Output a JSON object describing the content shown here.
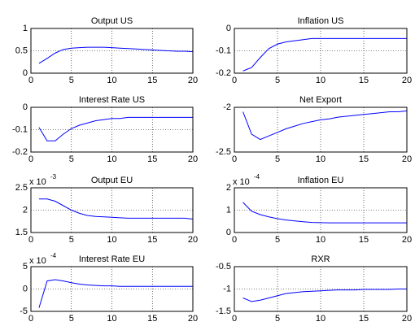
{
  "chart_data": [
    {
      "type": "line",
      "title": "Output US",
      "x": [
        1,
        2,
        3,
        4,
        5,
        6,
        7,
        8,
        9,
        10,
        11,
        12,
        13,
        14,
        15,
        16,
        17,
        18,
        19,
        20
      ],
      "values": [
        0.22,
        0.33,
        0.45,
        0.53,
        0.56,
        0.57,
        0.58,
        0.58,
        0.58,
        0.57,
        0.56,
        0.55,
        0.54,
        0.53,
        0.52,
        0.51,
        0.5,
        0.49,
        0.49,
        0.48
      ],
      "color": "#0000ff",
      "xlim": [
        0,
        20
      ],
      "xticks": [
        0,
        5,
        10,
        15,
        20
      ],
      "ylim": [
        0,
        1
      ],
      "yticks": [
        0,
        0.5,
        1
      ],
      "grid": true
    },
    {
      "type": "line",
      "title": "Inflation US",
      "x": [
        1,
        2,
        3,
        4,
        5,
        6,
        7,
        8,
        9,
        10,
        11,
        12,
        13,
        14,
        15,
        16,
        17,
        18,
        19,
        20
      ],
      "values": [
        -0.19,
        -0.175,
        -0.13,
        -0.09,
        -0.07,
        -0.06,
        -0.055,
        -0.05,
        -0.045,
        -0.045,
        -0.045,
        -0.045,
        -0.045,
        -0.045,
        -0.045,
        -0.045,
        -0.045,
        -0.045,
        -0.045,
        -0.045
      ],
      "color": "#0000ff",
      "xlim": [
        0,
        20
      ],
      "xticks": [
        0,
        5,
        10,
        15,
        20
      ],
      "ylim": [
        -0.2,
        0
      ],
      "yticks": [
        -0.2,
        -0.1,
        0
      ],
      "grid": true
    },
    {
      "type": "line",
      "title": "Interest Rate US",
      "x": [
        1,
        2,
        3,
        4,
        5,
        6,
        7,
        8,
        9,
        10,
        11,
        12,
        13,
        14,
        15,
        16,
        17,
        18,
        19,
        20
      ],
      "values": [
        -0.09,
        -0.15,
        -0.15,
        -0.12,
        -0.095,
        -0.08,
        -0.07,
        -0.06,
        -0.055,
        -0.05,
        -0.05,
        -0.045,
        -0.045,
        -0.045,
        -0.045,
        -0.045,
        -0.045,
        -0.045,
        -0.045,
        -0.045
      ],
      "color": "#0000ff",
      "xlim": [
        0,
        20
      ],
      "xticks": [
        0,
        5,
        10,
        15,
        20
      ],
      "ylim": [
        -0.2,
        0
      ],
      "yticks": [
        -0.2,
        -0.1,
        0
      ],
      "grid": true
    },
    {
      "type": "line",
      "title": "Net Export",
      "x": [
        1,
        2,
        3,
        4,
        5,
        6,
        7,
        8,
        9,
        10,
        11,
        12,
        13,
        14,
        15,
        16,
        17,
        18,
        19,
        20
      ],
      "values": [
        -2.05,
        -2.3,
        -2.36,
        -2.32,
        -2.28,
        -2.24,
        -2.21,
        -2.18,
        -2.16,
        -2.14,
        -2.13,
        -2.11,
        -2.1,
        -2.09,
        -2.08,
        -2.07,
        -2.06,
        -2.05,
        -2.05,
        -2.04
      ],
      "color": "#0000ff",
      "xlim": [
        0,
        20
      ],
      "xticks": [
        0,
        5,
        10,
        15,
        20
      ],
      "ylim": [
        -2.5,
        -2
      ],
      "yticks": [
        -2.5,
        -2
      ],
      "grid": true
    },
    {
      "type": "line",
      "title": "Output EU",
      "y_exponent": {
        "base": "x 10",
        "power": -3
      },
      "x": [
        1,
        2,
        3,
        4,
        5,
        6,
        7,
        8,
        9,
        10,
        11,
        12,
        13,
        14,
        15,
        16,
        17,
        18,
        19,
        20
      ],
      "values": [
        2.25,
        2.25,
        2.2,
        2.1,
        2.0,
        1.93,
        1.88,
        1.86,
        1.85,
        1.84,
        1.83,
        1.82,
        1.82,
        1.82,
        1.82,
        1.82,
        1.82,
        1.82,
        1.82,
        1.8
      ],
      "color": "#0000ff",
      "xlim": [
        0,
        20
      ],
      "xticks": [
        0,
        5,
        10,
        15,
        20
      ],
      "ylim": [
        1.5,
        2.5
      ],
      "yticks": [
        1.5,
        2,
        2.5
      ],
      "grid": true
    },
    {
      "type": "line",
      "title": "Inflation EU",
      "y_exponent": {
        "base": "x 10",
        "power": -4
      },
      "x": [
        1,
        2,
        3,
        4,
        5,
        6,
        7,
        8,
        9,
        10,
        11,
        12,
        13,
        14,
        15,
        16,
        17,
        18,
        19,
        20
      ],
      "values": [
        1.35,
        0.95,
        0.8,
        0.7,
        0.62,
        0.56,
        0.52,
        0.48,
        0.45,
        0.44,
        0.43,
        0.43,
        0.43,
        0.43,
        0.43,
        0.43,
        0.43,
        0.43,
        0.43,
        0.43
      ],
      "color": "#0000ff",
      "xlim": [
        0,
        20
      ],
      "xticks": [
        0,
        5,
        10,
        15,
        20
      ],
      "ylim": [
        0,
        2
      ],
      "yticks": [
        0,
        1,
        2
      ],
      "grid": true
    },
    {
      "type": "line",
      "title": "Interest Rate EU",
      "y_exponent": {
        "base": "x 10",
        "power": -4
      },
      "x": [
        1,
        2,
        3,
        4,
        5,
        6,
        7,
        8,
        9,
        10,
        11,
        12,
        13,
        14,
        15,
        16,
        17,
        18,
        19,
        20
      ],
      "values": [
        -4.2,
        1.8,
        2.1,
        1.8,
        1.4,
        1.1,
        0.9,
        0.8,
        0.7,
        0.7,
        0.6,
        0.6,
        0.6,
        0.6,
        0.6,
        0.6,
        0.6,
        0.6,
        0.6,
        0.6
      ],
      "color": "#0000ff",
      "xlim": [
        0,
        20
      ],
      "xticks": [
        0,
        5,
        10,
        15,
        20
      ],
      "ylim": [
        -5,
        5
      ],
      "yticks": [
        -5,
        0,
        5
      ],
      "grid": true
    },
    {
      "type": "line",
      "title": "RXR",
      "x": [
        1,
        2,
        3,
        4,
        5,
        6,
        7,
        8,
        9,
        10,
        11,
        12,
        13,
        14,
        15,
        16,
        17,
        18,
        19,
        20
      ],
      "values": [
        -1.2,
        -1.28,
        -1.25,
        -1.2,
        -1.15,
        -1.1,
        -1.08,
        -1.06,
        -1.05,
        -1.04,
        -1.03,
        -1.02,
        -1.02,
        -1.02,
        -1.01,
        -1.01,
        -1.01,
        -1.01,
        -1.0,
        -1.0
      ],
      "color": "#0000ff",
      "xlim": [
        0,
        20
      ],
      "xticks": [
        0,
        5,
        10,
        15,
        20
      ],
      "ylim": [
        -1.5,
        -0.5
      ],
      "yticks": [
        -1.5,
        -1,
        -0.5
      ],
      "grid": true
    }
  ]
}
